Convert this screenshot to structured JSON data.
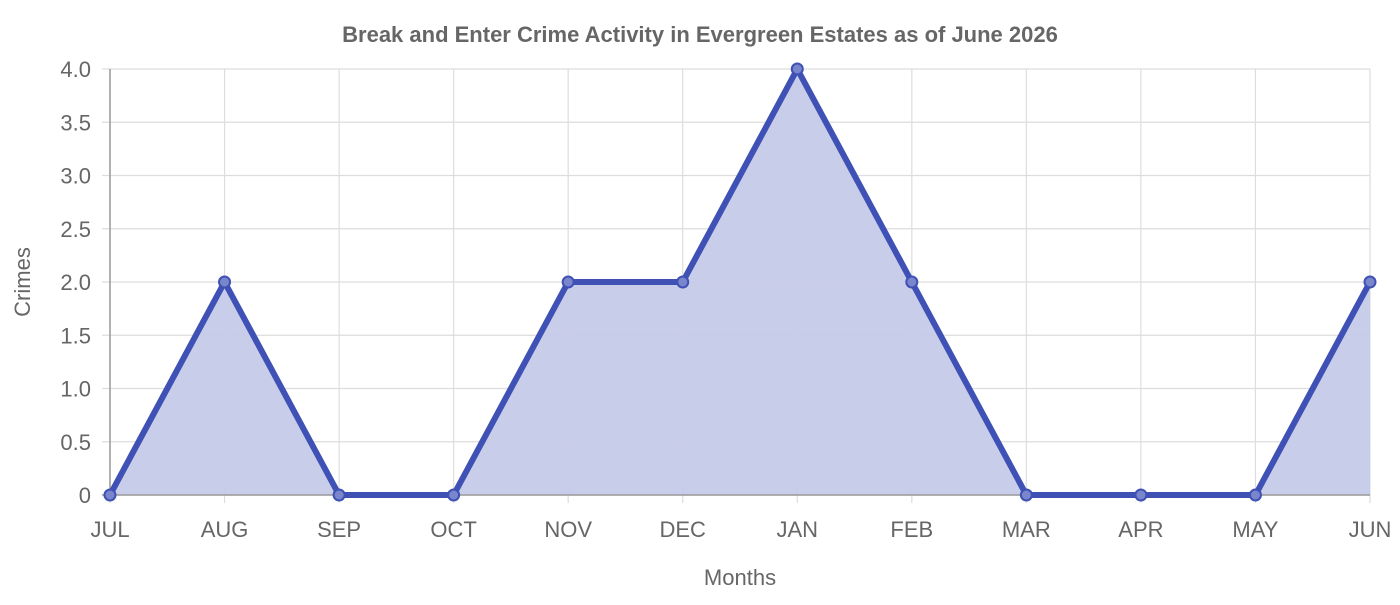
{
  "chart_data": {
    "type": "area",
    "title": "Break and Enter Crime Activity in Evergreen Estates as of June 2026",
    "xlabel": "Months",
    "ylabel": "Crimes",
    "categories": [
      "JUL",
      "AUG",
      "SEP",
      "OCT",
      "NOV",
      "DEC",
      "JAN",
      "FEB",
      "MAR",
      "APR",
      "MAY",
      "JUN"
    ],
    "series": [
      {
        "values": [
          0,
          2,
          0,
          0,
          2,
          2,
          4,
          2,
          0,
          0,
          0,
          2
        ]
      }
    ],
    "ylim": [
      0,
      4
    ],
    "yticks": [
      "0",
      "0.5",
      "1.0",
      "1.5",
      "2.0",
      "2.5",
      "3.0",
      "3.5",
      "4.0"
    ],
    "grid": true,
    "colors": {
      "line": "#3f51b5",
      "fill": "#c5cae9",
      "grid": "#dddddd",
      "axis": "#999999",
      "text": "#666666"
    }
  }
}
